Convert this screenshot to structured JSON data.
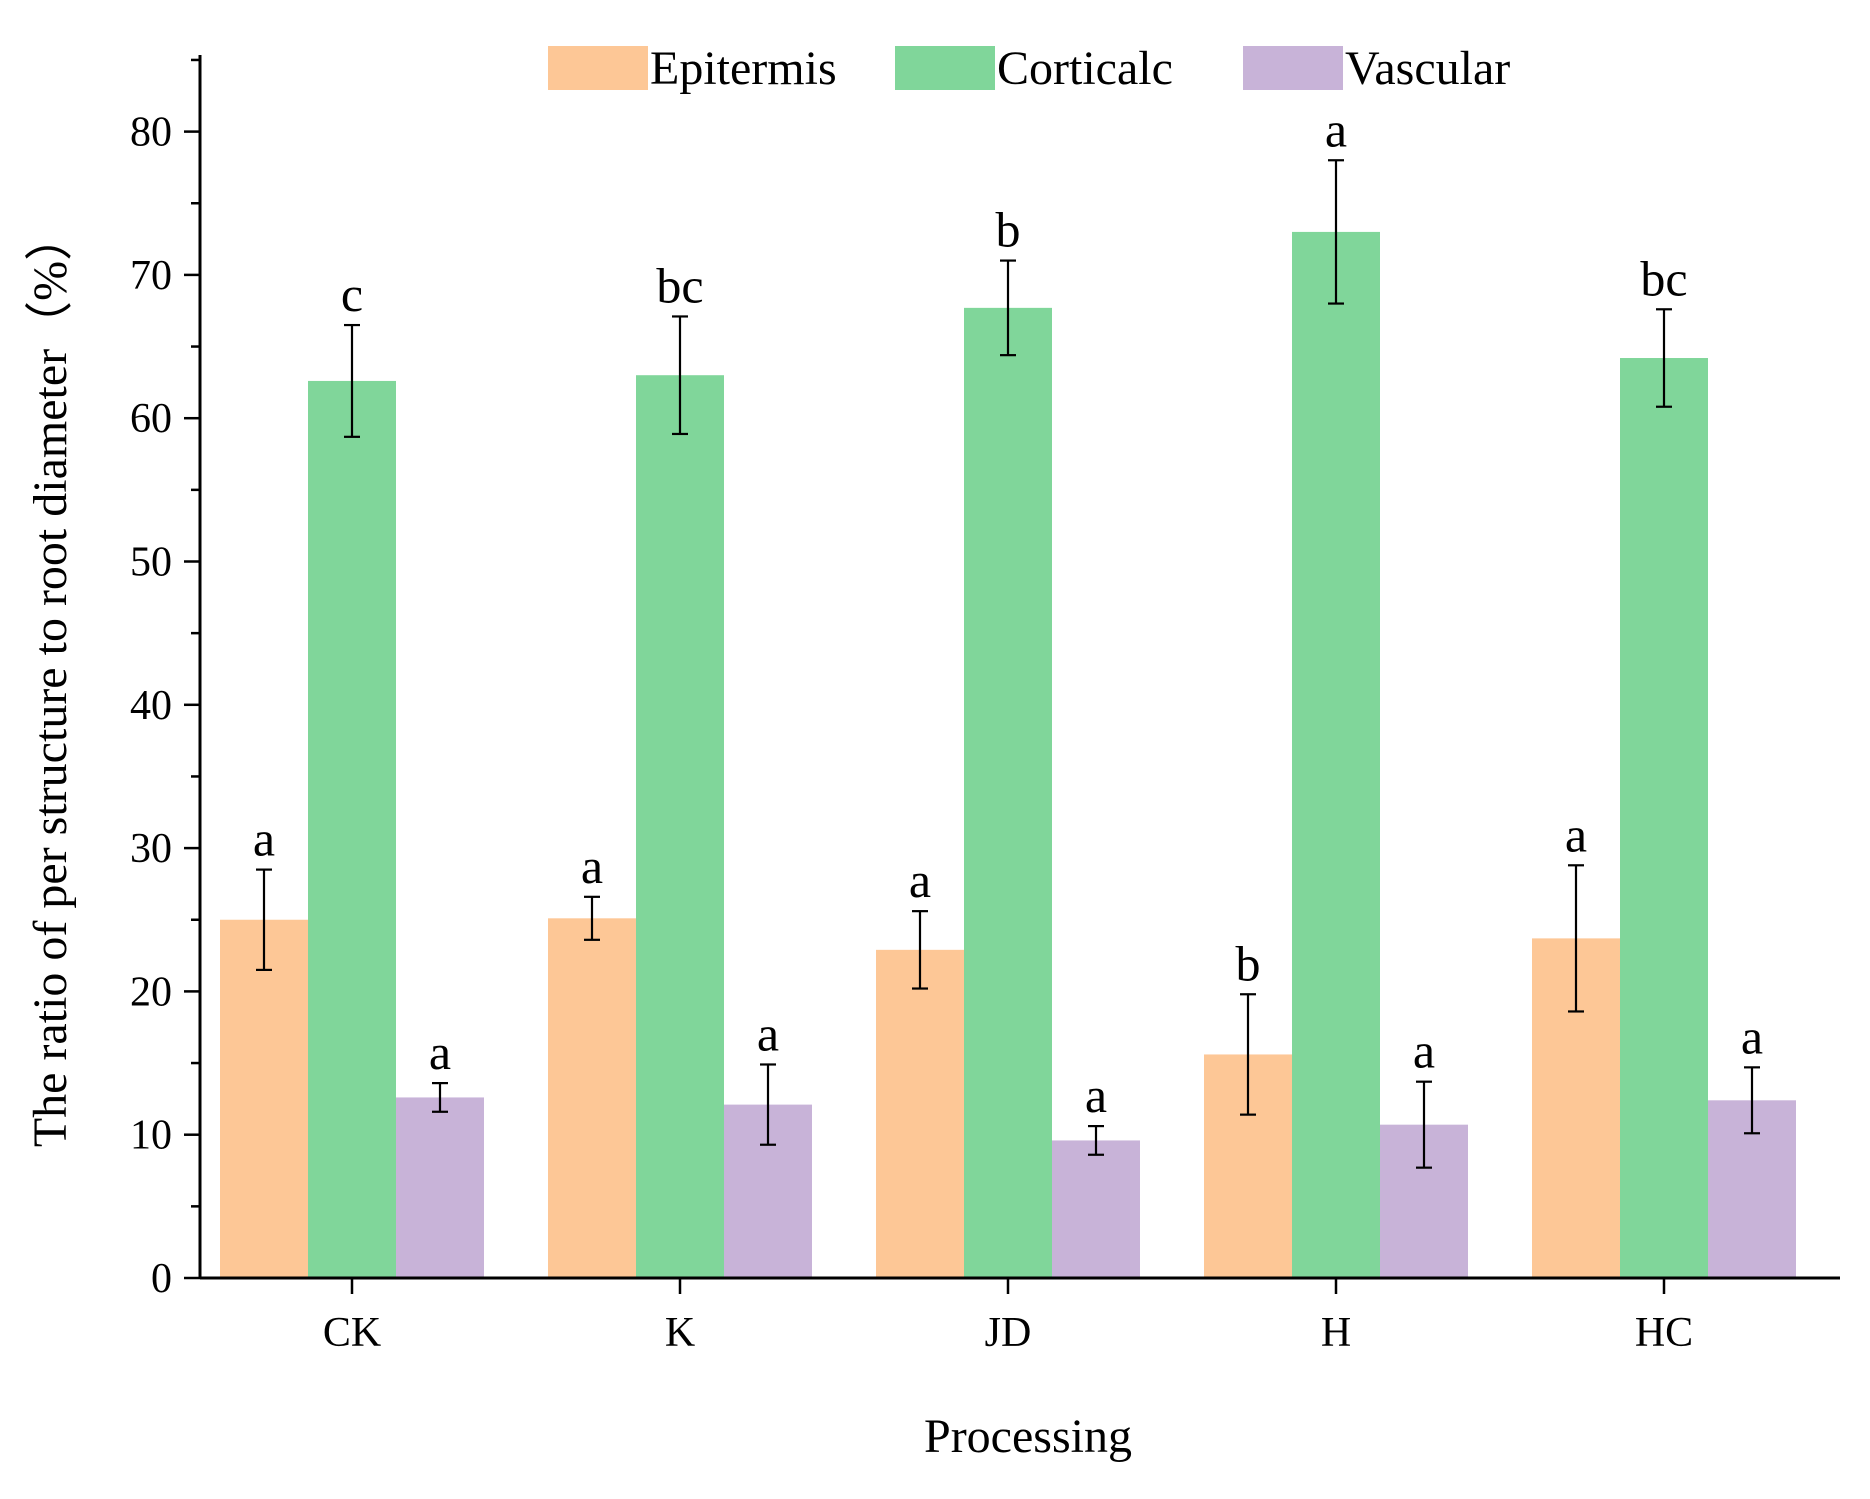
{
  "chart_data": {
    "type": "bar",
    "xlabel": "Processing",
    "ylabel": "The ratio of per structure to root diameter（%）",
    "ylim": [
      0,
      85
    ],
    "yticks": [
      0,
      10,
      20,
      30,
      40,
      50,
      60,
      70,
      80
    ],
    "grid": false,
    "legend_position": "top",
    "categories": [
      "CK",
      "K",
      "JD",
      "H",
      "HC"
    ],
    "series": [
      {
        "name": "Epitermis",
        "color": "#FDC796",
        "values": [
          25.0,
          25.1,
          22.9,
          15.6,
          23.7
        ],
        "errors": [
          3.5,
          1.5,
          2.7,
          4.2,
          5.1
        ],
        "labels": [
          "a",
          "a",
          "a",
          "b",
          "a"
        ]
      },
      {
        "name": "Corticalc",
        "color": "#80D69A",
        "values": [
          62.6,
          63.0,
          67.7,
          73.0,
          64.2
        ],
        "errors": [
          3.9,
          4.1,
          3.3,
          5.0,
          3.4
        ],
        "labels": [
          "c",
          "bc",
          "b",
          "a",
          "bc"
        ]
      },
      {
        "name": "Vascular",
        "color": "#C8B3D8",
        "values": [
          12.6,
          12.1,
          9.6,
          10.7,
          12.4
        ],
        "errors": [
          1.0,
          2.8,
          1.0,
          3.0,
          2.3
        ],
        "labels": [
          "a",
          "a",
          "a",
          "a",
          "a"
        ]
      }
    ]
  }
}
